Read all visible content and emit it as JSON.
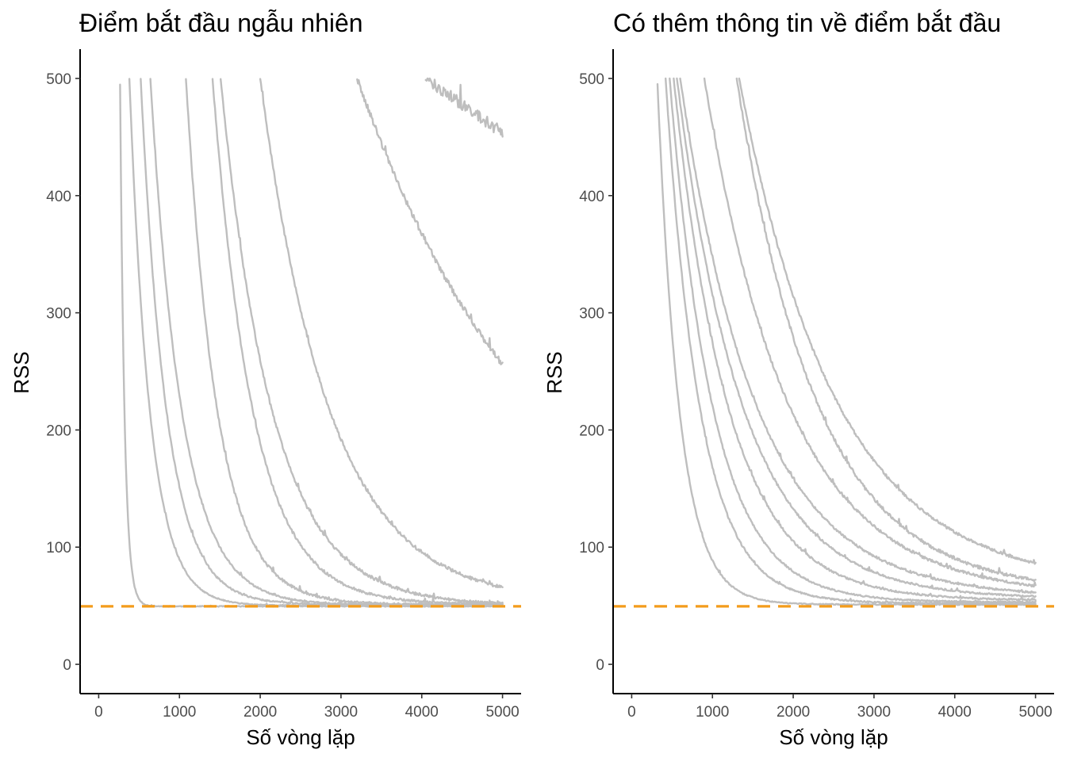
{
  "chart_data": [
    {
      "type": "line",
      "title": "Điểm bắt đầu ngẫu nhiên",
      "xlabel": "Số vòng lặp",
      "ylabel": "RSS",
      "xlim": [
        -230,
        5230
      ],
      "ylim": [
        -25,
        525
      ],
      "xticks": [
        0,
        1000,
        2000,
        3000,
        4000,
        5000
      ],
      "yticks": [
        0,
        100,
        200,
        300,
        400,
        500
      ],
      "x_tick_labels": [
        "0",
        "1000",
        "2000",
        "3000",
        "4000",
        "5000"
      ],
      "y_tick_labels": [
        "0",
        "100",
        "200",
        "300",
        "400",
        "500"
      ],
      "grid": false,
      "legend": "none",
      "reference_line": {
        "y": 49.5,
        "style": "dashed",
        "color": "#F39C1C"
      },
      "trace_color": "#BEBEBE",
      "series": [
        {
          "start": 265,
          "y_start": 495,
          "y_end": 49.5,
          "tau": 55,
          "noise": 0.5
        },
        {
          "start": 380,
          "y_start": 500,
          "y_end": 50,
          "tau": 255,
          "noise": 0.6
        },
        {
          "start": 520,
          "y_start": 500,
          "y_end": 51,
          "tau": 320,
          "noise": 0.8
        },
        {
          "start": 640,
          "y_start": 500,
          "y_end": 50.5,
          "tau": 390,
          "noise": 0.8
        },
        {
          "start": 1080,
          "y_start": 500,
          "y_end": 51,
          "tau": 390,
          "noise": 1.2
        },
        {
          "start": 1410,
          "y_start": 500,
          "y_end": 51,
          "tau": 500,
          "noise": 1.2
        },
        {
          "start": 1510,
          "y_start": 500,
          "y_end": 50,
          "tau": 640,
          "noise": 1.4
        },
        {
          "start": 2000,
          "y_start": 500,
          "y_end": 52,
          "tau": 860,
          "noise": 1.4
        },
        {
          "start": 3200,
          "y_start": 500,
          "y_end": 50,
          "tau": 2300,
          "noise": 2.5
        },
        {
          "start": 4050,
          "y_start": 500,
          "y_end": 50,
          "tau": 8800,
          "noise": 5
        }
      ]
    },
    {
      "type": "line",
      "title": "Có thêm thông tin về điểm bắt đầu",
      "xlabel": "Số vòng lặp",
      "ylabel": "RSS",
      "xlim": [
        -230,
        5230
      ],
      "ylim": [
        -25,
        525
      ],
      "xticks": [
        0,
        1000,
        2000,
        3000,
        4000,
        5000
      ],
      "yticks": [
        0,
        100,
        200,
        300,
        400,
        500
      ],
      "x_tick_labels": [
        "0",
        "1000",
        "2000",
        "3000",
        "4000",
        "5000"
      ],
      "y_tick_labels": [
        "0",
        "100",
        "200",
        "300",
        "400",
        "500"
      ],
      "grid": false,
      "legend": "none",
      "reference_line": {
        "y": 49.5,
        "style": "dashed",
        "color": "#F39C1C"
      },
      "trace_color": "#BEBEBE",
      "series": [
        {
          "start": 320,
          "y_start": 495,
          "y_end": 51,
          "tau": 275,
          "noise": 0.6
        },
        {
          "start": 420,
          "y_start": 500,
          "y_end": 52,
          "tau": 430,
          "noise": 0.8
        },
        {
          "start": 470,
          "y_start": 500,
          "y_end": 53,
          "tau": 540,
          "noise": 0.8
        },
        {
          "start": 520,
          "y_start": 500,
          "y_end": 54.5,
          "tau": 680,
          "noise": 0.9
        },
        {
          "start": 560,
          "y_start": 500,
          "y_end": 56,
          "tau": 820,
          "noise": 0.9
        },
        {
          "start": 600,
          "y_start": 500,
          "y_end": 57,
          "tau": 950,
          "noise": 1.0
        },
        {
          "start": 900,
          "y_start": 500,
          "y_end": 58,
          "tau": 1050,
          "noise": 1.2
        },
        {
          "start": 1300,
          "y_start": 500,
          "y_end": 61,
          "tau": 1000,
          "noise": 1.4
        },
        {
          "start": 1330,
          "y_start": 500,
          "y_end": 66,
          "tau": 1200,
          "noise": 1.2
        }
      ]
    }
  ]
}
